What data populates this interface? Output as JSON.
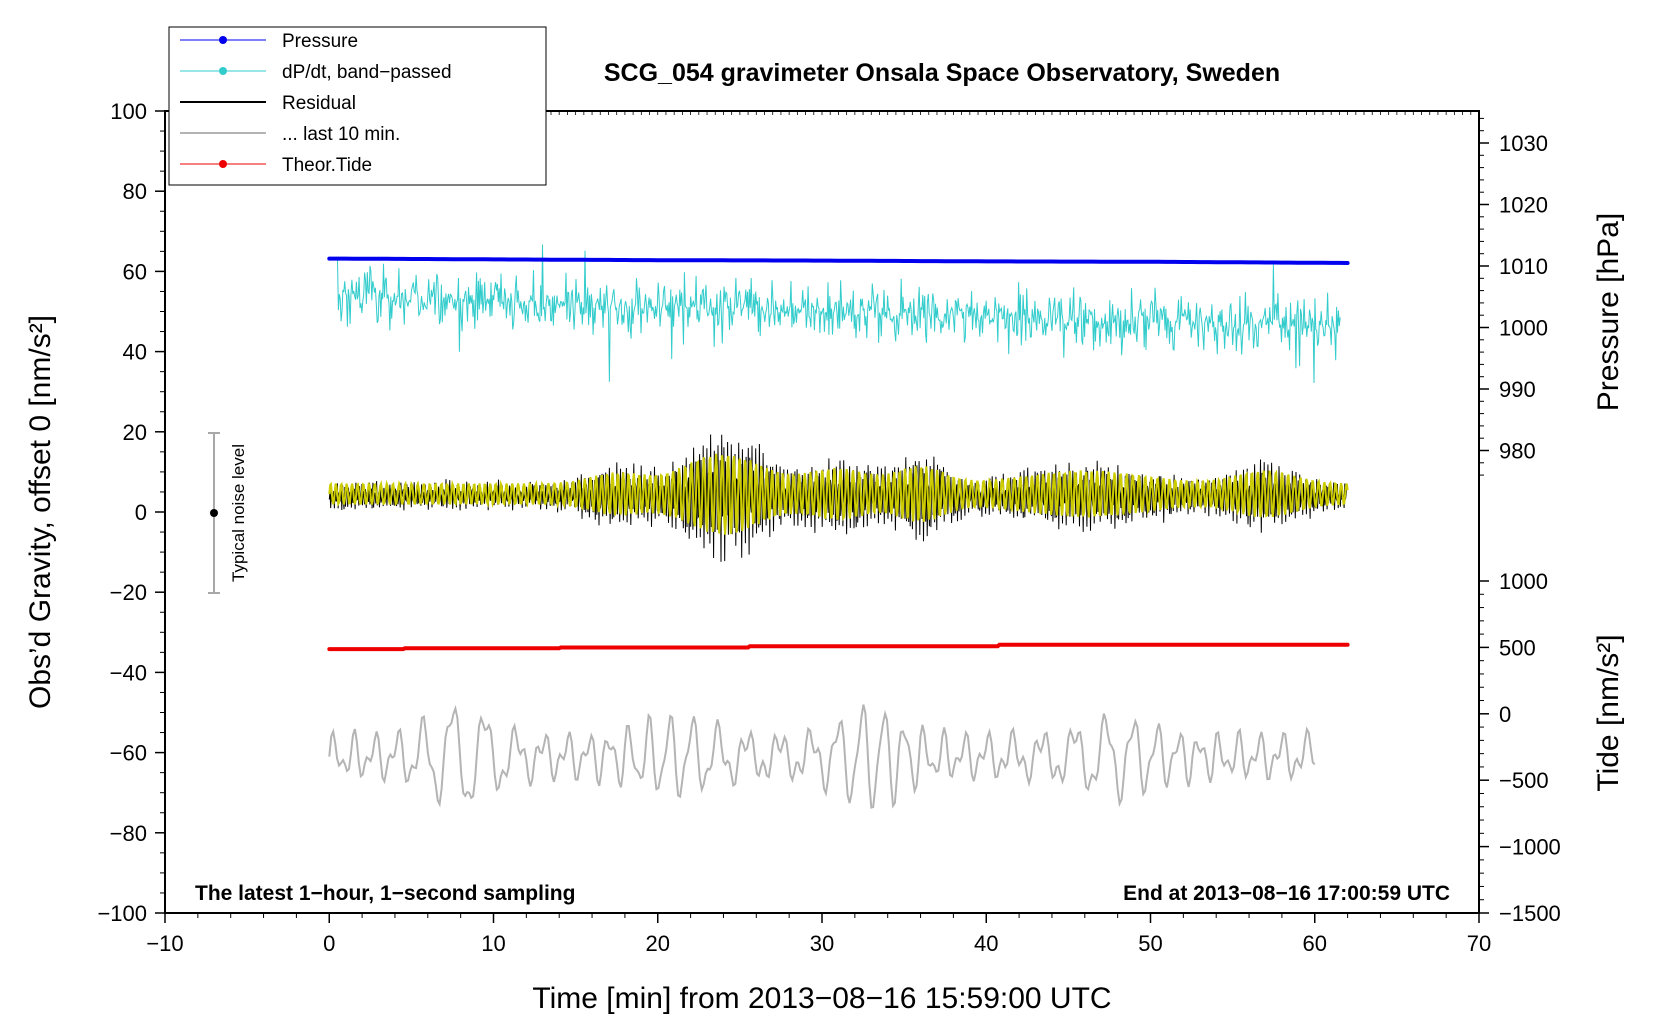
{
  "chart_data": {
    "type": "line",
    "title": "SCG_054 gravimeter Onsala Space Observatory, Sweden",
    "xlabel": "Time [min] from 2013−08−16 15:59:00 UTC",
    "ylabel_left": "Obs’d Gravity, offset 0 [nm/s²]",
    "ylabel_right_top": "Pressure [hPa]",
    "ylabel_right_bottom": "Tide [nm/s²]",
    "xlim": [
      -10,
      70
    ],
    "ylim_left": [
      -100,
      100
    ],
    "x_ticks": [
      "−10",
      "0",
      "10",
      "20",
      "30",
      "40",
      "50",
      "60",
      "70"
    ],
    "y_left_ticks": [
      "100",
      "80",
      "60",
      "40",
      "20",
      "0",
      "−20",
      "−40",
      "−60",
      "−80",
      "−100"
    ],
    "y_right_pressure_ticks": [
      "1030",
      "1020",
      "1010",
      "1000",
      "990",
      "980"
    ],
    "y_right_tide_ticks": [
      "1000",
      "500",
      "0",
      "−500",
      "−1000",
      "−1500"
    ],
    "grid": false,
    "legend_position": "top-left",
    "legend": [
      {
        "name": "Pressure",
        "color": "#0000ee",
        "marker": "dot"
      },
      {
        "name": "dP/dt, band−passed",
        "color": "#33cccc",
        "marker": "dot"
      },
      {
        "name": "Residual",
        "color": "#000000",
        "marker": "none"
      },
      {
        "name": "... last 10 min.",
        "color": "#b4b4b4",
        "marker": "none"
      },
      {
        "name": "Theor.Tide",
        "color": "#ee0000",
        "marker": "dot"
      }
    ],
    "series": [
      {
        "name": "Pressure",
        "x": [
          0,
          10,
          20,
          30,
          40,
          50,
          62
        ],
        "values": [
          63.2,
          63.0,
          62.8,
          62.7,
          62.5,
          62.4,
          62.1
        ]
      },
      {
        "name": "dP/dt, band−passed",
        "x_range": [
          0.5,
          61.5
        ],
        "values_range": [
          28,
          67
        ]
      },
      {
        "name": "Residual",
        "x_range": [
          0,
          62
        ],
        "values_range": [
          -16,
          29
        ]
      },
      {
        "name": "... last 10 min.",
        "x_range": [
          0,
          60
        ],
        "values_range": [
          -83,
          -43
        ]
      },
      {
        "name": "Theor.Tide",
        "x": [
          0,
          4.5,
          4.6,
          14,
          14.1,
          25.5,
          25.6,
          40.7,
          40.8,
          62
        ],
        "values": [
          -34.2,
          -34.2,
          -34.0,
          -34.0,
          -33.8,
          -33.8,
          -33.5,
          -33.5,
          -33.1,
          -33.1
        ]
      }
    ],
    "noise_bar": {
      "label": "Typical noise level",
      "x": -7,
      "center": 0,
      "range": [
        -20,
        20
      ]
    },
    "annotations": {
      "bottom_left": "The latest 1−hour, 1−second sampling",
      "bottom_right": "End at 2013−08−16 17:00:59 UTC"
    },
    "colors": {
      "band_passed_residual": "#cccc00"
    }
  }
}
